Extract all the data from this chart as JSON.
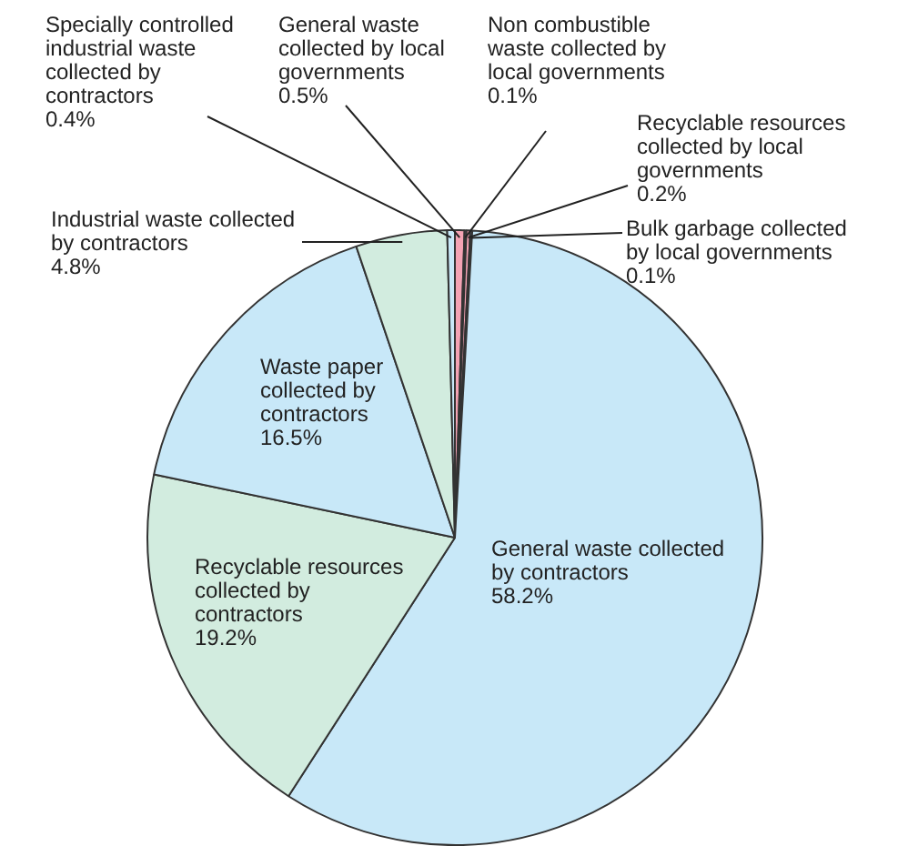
{
  "chart_data": {
    "type": "pie",
    "categories": [
      "General waste collected by local governments",
      "Non combustible waste collected by local governments",
      "Recyclable resources collected by local governments",
      "Bulk garbage collected by local governments",
      "General waste collected by contractors",
      "Recyclable resources collected by contractors",
      "Waste paper collected by contractors",
      "Industrial waste collected by contractors",
      "Specially controlled industrial waste collected by contractors"
    ],
    "values": [
      0.5,
      0.1,
      0.2,
      0.1,
      58.2,
      19.2,
      16.5,
      4.8,
      0.4
    ],
    "value_labels": [
      "0.5%",
      "0.1%",
      "0.2%",
      "0.1%",
      "58.2%",
      "19.2%",
      "16.5%",
      "4.8%",
      "0.4%"
    ],
    "colors": [
      "#f4a3b4",
      "#9a96c8",
      "#f4a3b4",
      "#9a96c8",
      "#c8e8f8",
      "#d2ecdf",
      "#c8e8f8",
      "#d2ecdf",
      "#c8e8f8"
    ],
    "legend": false
  }
}
